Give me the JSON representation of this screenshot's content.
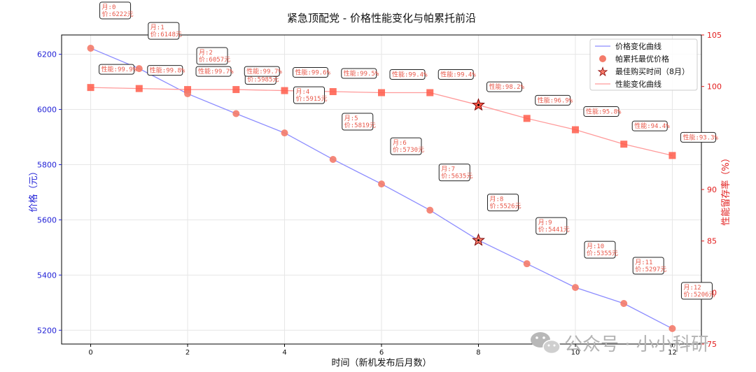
{
  "chart_data": {
    "type": "line",
    "title": "紧急顶配党 - 价格性能变化与帕累托前沿",
    "xlabel": "时间（新机发布后月数）",
    "ylabel_left": "价格（元）",
    "ylabel_right": "性能留存率（%）",
    "x": [
      0,
      1,
      2,
      3,
      4,
      5,
      6,
      7,
      8,
      9,
      10,
      11,
      12
    ],
    "x_ticks": [
      0,
      2,
      4,
      6,
      8,
      10,
      12
    ],
    "xlim": [
      -0.6,
      12.6
    ],
    "y_left_lim": [
      5150,
      6270
    ],
    "y_left_ticks": [
      5200,
      5400,
      5600,
      5800,
      6000,
      6200
    ],
    "y_right_lim": [
      75,
      105
    ],
    "y_right_ticks": [
      75,
      80,
      85,
      90,
      95,
      100,
      105
    ],
    "price": [
      6222,
      6148,
      6057,
      5985,
      5915,
      5819,
      5730,
      5635,
      5526,
      5441,
      5355,
      5297,
      5206
    ],
    "performance": [
      99.9,
      99.8,
      99.7,
      99.7,
      99.6,
      99.5,
      99.4,
      99.4,
      98.2,
      96.9,
      95.8,
      94.4,
      93.3
    ],
    "price_labels": [
      "月:0\n价:6222元",
      "月:1\n价:6148元",
      "月:2\n价:6057元",
      "月:3\n价:5985元",
      "月:4\n价:5915元",
      "月:5\n价:5819元",
      "月:6\n价:5730元",
      "月:7\n价:5635元",
      "月:8\n价:5526元",
      "月:9\n价:5441元",
      "月:10\n价:5355元",
      "月:11\n价:5297元",
      "月:12\n价:5206元"
    ],
    "perf_labels": [
      "性能:99.9%",
      "性能:99.8%",
      "性能:99.7%",
      "性能:99.7%",
      "性能:99.6%",
      "性能:99.5%",
      "性能:99.4%",
      "性能:99.4%",
      "性能:98.2%",
      "性能:96.9%",
      "性能:95.8%",
      "性能:94.4%",
      "性能:93.3%"
    ],
    "best_month": 8,
    "legend": {
      "position": "top-right",
      "entries": [
        "价格变化曲线",
        "帕累托最优价格",
        "最佳购买时间（8月）",
        "性能变化曲线"
      ]
    },
    "colors": {
      "price_line": "#8c8cff",
      "price_marker": "#f47b6a",
      "perf_line": "#ff9a9a",
      "perf_marker": "#ff5c4a",
      "left_axis": "#1f1fd6",
      "right_axis": "#e21b1b",
      "label_text": "#e8584a"
    },
    "grid": true
  },
  "watermark": "公众号 · 小小科研",
  "watermark_icon": "wechat-icon"
}
